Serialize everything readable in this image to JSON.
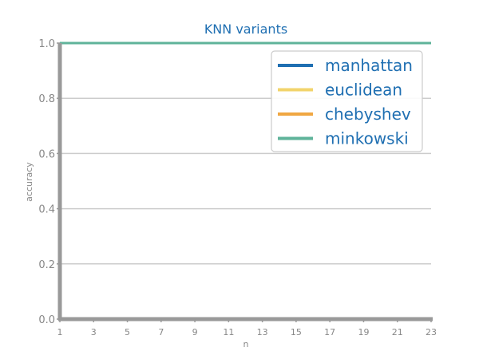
{
  "chart_data": {
    "type": "line",
    "title": "KNN variants",
    "xlabel": "n",
    "ylabel": "accuracy",
    "x": [
      1,
      3,
      5,
      7,
      9,
      11,
      13,
      15,
      17,
      19,
      21,
      23
    ],
    "xticks": [
      "1",
      "3",
      "5",
      "7",
      "9",
      "11",
      "13",
      "15",
      "17",
      "19",
      "21",
      "23"
    ],
    "yticks": [
      "0.0",
      "0.2",
      "0.4",
      "0.6",
      "0.8",
      "1.0"
    ],
    "xlim": [
      1,
      23
    ],
    "ylim": [
      0,
      1
    ],
    "grid": "horizontal",
    "legend_position": "top-right",
    "series": [
      {
        "name": "manhattan",
        "color": "#1f6fb2",
        "values": [
          1,
          1,
          1,
          1,
          1,
          1,
          1,
          1,
          1,
          1,
          1,
          1
        ]
      },
      {
        "name": "euclidean",
        "color": "#f2d46b",
        "values": [
          1,
          1,
          1,
          1,
          1,
          1,
          1,
          1,
          1,
          1,
          1,
          1
        ]
      },
      {
        "name": "chebyshev",
        "color": "#f0a742",
        "values": [
          1,
          1,
          1,
          1,
          1,
          1,
          1,
          1,
          1,
          1,
          1,
          1
        ]
      },
      {
        "name": "minkowski",
        "color": "#5fb39a",
        "values": [
          1,
          1,
          1,
          1,
          1,
          1,
          1,
          1,
          1,
          1,
          1,
          1
        ]
      }
    ]
  },
  "colors": {
    "title": "#1f6fb2",
    "legend_text": "#1f6fb2",
    "axis": "#999999",
    "tick_label": "#888888",
    "grid": "#cccccc"
  }
}
